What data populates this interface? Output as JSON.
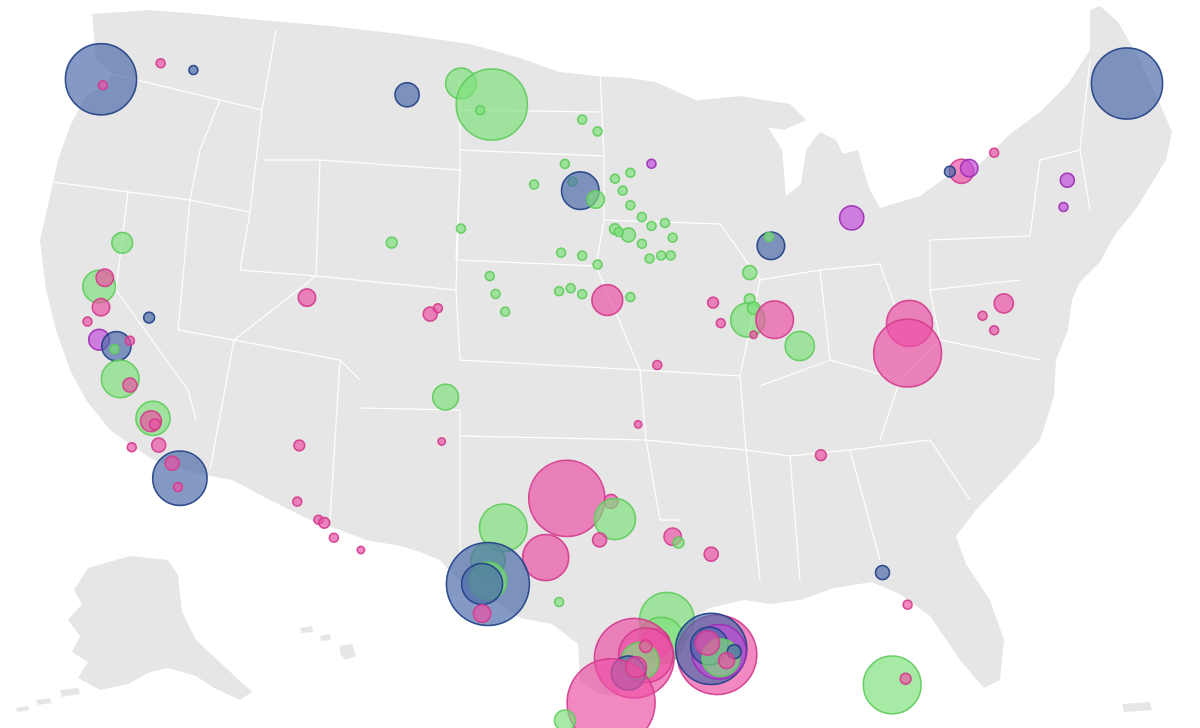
{
  "colors": {
    "land": "#e6e6e6",
    "border": "#ffffff",
    "background": "#ffffff"
  },
  "categories": {
    "green": {
      "fill": "#7ee07a",
      "stroke": "#5fcb5c"
    },
    "pink": {
      "fill": "#ec4fa5",
      "stroke": "#d33b8d"
    },
    "blue": {
      "fill": "#4a6aa8",
      "stroke": "#203f85"
    },
    "purple": {
      "fill": "#c04bd8",
      "stroke": "#9b2db3"
    }
  },
  "markers": [
    {
      "lon": -122.3,
      "lat": 47.6,
      "size": 4.0,
      "cat": "blue"
    },
    {
      "lon": -122.2,
      "lat": 47.4,
      "size": 0.3,
      "cat": "pink"
    },
    {
      "lon": -119.2,
      "lat": 48.2,
      "size": 0.3,
      "cat": "pink"
    },
    {
      "lon": -117.5,
      "lat": 48.0,
      "size": 0.3,
      "cat": "blue"
    },
    {
      "lon": -106.4,
      "lat": 47.3,
      "size": 1.2,
      "cat": "blue"
    },
    {
      "lon": -103.6,
      "lat": 47.7,
      "size": 1.6,
      "cat": "green"
    },
    {
      "lon": -102.0,
      "lat": 47.0,
      "size": 4.0,
      "cat": "green"
    },
    {
      "lon": -102.6,
      "lat": 46.8,
      "size": 0.3,
      "cat": "green"
    },
    {
      "lon": -97.3,
      "lat": 46.5,
      "size": 0.3,
      "cat": "green"
    },
    {
      "lon": -96.5,
      "lat": 46.1,
      "size": 0.3,
      "cat": "green"
    },
    {
      "lon": -98.2,
      "lat": 45.0,
      "size": 0.3,
      "cat": "green"
    },
    {
      "lon": -97.8,
      "lat": 44.4,
      "size": 0.3,
      "cat": "green"
    },
    {
      "lon": -97.4,
      "lat": 44.1,
      "size": 2.0,
      "cat": "blue"
    },
    {
      "lon": -96.6,
      "lat": 43.8,
      "size": 0.8,
      "cat": "green"
    },
    {
      "lon": -99.8,
      "lat": 44.3,
      "size": 0.3,
      "cat": "green"
    },
    {
      "lon": -95.6,
      "lat": 44.5,
      "size": 0.3,
      "cat": "green"
    },
    {
      "lon": -95.2,
      "lat": 44.1,
      "size": 0.3,
      "cat": "green"
    },
    {
      "lon": -94.8,
      "lat": 44.7,
      "size": 0.3,
      "cat": "green"
    },
    {
      "lon": -94.8,
      "lat": 43.6,
      "size": 0.3,
      "cat": "green"
    },
    {
      "lon": -94.2,
      "lat": 43.2,
      "size": 0.3,
      "cat": "green"
    },
    {
      "lon": -93.7,
      "lat": 45.0,
      "size": 0.3,
      "cat": "purple"
    },
    {
      "lon": -95.6,
      "lat": 42.8,
      "size": 0.4,
      "cat": "green"
    },
    {
      "lon": -94.9,
      "lat": 42.6,
      "size": 0.6,
      "cat": "green"
    },
    {
      "lon": -95.4,
      "lat": 42.7,
      "size": 0.3,
      "cat": "green"
    },
    {
      "lon": -93.7,
      "lat": 42.9,
      "size": 0.3,
      "cat": "green"
    },
    {
      "lon": -93.0,
      "lat": 43.0,
      "size": 0.3,
      "cat": "green"
    },
    {
      "lon": -92.6,
      "lat": 42.5,
      "size": 0.3,
      "cat": "green"
    },
    {
      "lon": -94.2,
      "lat": 42.3,
      "size": 0.3,
      "cat": "green"
    },
    {
      "lon": -93.8,
      "lat": 41.8,
      "size": 0.3,
      "cat": "green"
    },
    {
      "lon": -93.2,
      "lat": 41.9,
      "size": 0.3,
      "cat": "green"
    },
    {
      "lon": -92.7,
      "lat": 41.9,
      "size": 0.3,
      "cat": "green"
    },
    {
      "lon": -98.4,
      "lat": 42.0,
      "size": 0.3,
      "cat": "green"
    },
    {
      "lon": -97.3,
      "lat": 41.9,
      "size": 0.3,
      "cat": "green"
    },
    {
      "lon": -96.5,
      "lat": 41.6,
      "size": 0.3,
      "cat": "green"
    },
    {
      "lon": -98.5,
      "lat": 40.7,
      "size": 0.3,
      "cat": "green"
    },
    {
      "lon": -97.9,
      "lat": 40.8,
      "size": 0.3,
      "cat": "green"
    },
    {
      "lon": -97.3,
      "lat": 40.6,
      "size": 0.3,
      "cat": "green"
    },
    {
      "lon": -96.0,
      "lat": 40.4,
      "size": 1.6,
      "cat": "pink"
    },
    {
      "lon": -94.8,
      "lat": 40.5,
      "size": 0.3,
      "cat": "green"
    },
    {
      "lon": -102.1,
      "lat": 41.2,
      "size": 0.3,
      "cat": "green"
    },
    {
      "lon": -101.8,
      "lat": 40.6,
      "size": 0.3,
      "cat": "green"
    },
    {
      "lon": -101.3,
      "lat": 40.0,
      "size": 0.3,
      "cat": "green"
    },
    {
      "lon": -107.2,
      "lat": 42.3,
      "size": 0.4,
      "cat": "green"
    },
    {
      "lon": -103.6,
      "lat": 42.8,
      "size": 0.3,
      "cat": "green"
    },
    {
      "lon": -111.6,
      "lat": 40.4,
      "size": 0.8,
      "cat": "pink"
    },
    {
      "lon": -105.2,
      "lat": 39.9,
      "size": 0.6,
      "cat": "pink"
    },
    {
      "lon": -104.8,
      "lat": 40.1,
      "size": 0.3,
      "cat": "pink"
    },
    {
      "lon": -104.4,
      "lat": 37.1,
      "size": 1.3,
      "cat": "green"
    },
    {
      "lon": -121.2,
      "lat": 42.1,
      "size": 1.0,
      "cat": "green"
    },
    {
      "lon": -122.4,
      "lat": 40.6,
      "size": 1.7,
      "cat": "green"
    },
    {
      "lon": -122.1,
      "lat": 40.9,
      "size": 0.8,
      "cat": "pink"
    },
    {
      "lon": -122.3,
      "lat": 39.9,
      "size": 0.8,
      "cat": "pink"
    },
    {
      "lon": -119.8,
      "lat": 39.6,
      "size": 0.4,
      "cat": "blue"
    },
    {
      "lon": -122.4,
      "lat": 38.8,
      "size": 1.0,
      "cat": "purple"
    },
    {
      "lon": -121.5,
      "lat": 38.6,
      "size": 1.5,
      "cat": "blue"
    },
    {
      "lon": -121.6,
      "lat": 38.5,
      "size": 0.3,
      "cat": "green"
    },
    {
      "lon": -120.8,
      "lat": 38.8,
      "size": 0.3,
      "cat": "pink"
    },
    {
      "lon": -123.0,
      "lat": 39.4,
      "size": 0.3,
      "cat": "pink"
    },
    {
      "lon": -121.3,
      "lat": 37.5,
      "size": 2.0,
      "cat": "green"
    },
    {
      "lon": -120.8,
      "lat": 37.3,
      "size": 0.6,
      "cat": "pink"
    },
    {
      "lon": -119.6,
      "lat": 36.2,
      "size": 1.8,
      "cat": "green"
    },
    {
      "lon": -119.7,
      "lat": 36.1,
      "size": 1.0,
      "cat": "pink"
    },
    {
      "lon": -119.5,
      "lat": 36.0,
      "size": 0.4,
      "cat": "pink"
    },
    {
      "lon": -119.3,
      "lat": 35.3,
      "size": 0.6,
      "cat": "pink"
    },
    {
      "lon": -118.2,
      "lat": 34.2,
      "size": 3.0,
      "cat": "blue"
    },
    {
      "lon": -118.6,
      "lat": 34.7,
      "size": 0.6,
      "cat": "pink"
    },
    {
      "lon": -118.3,
      "lat": 33.9,
      "size": 0.3,
      "cat": "pink"
    },
    {
      "lon": -120.7,
      "lat": 35.2,
      "size": 0.3,
      "cat": "pink"
    },
    {
      "lon": -112.0,
      "lat": 35.4,
      "size": 0.4,
      "cat": "pink"
    },
    {
      "lon": -112.1,
      "lat": 33.5,
      "size": 0.3,
      "cat": "pink"
    },
    {
      "lon": -111.0,
      "lat": 32.9,
      "size": 0.3,
      "cat": "pink"
    },
    {
      "lon": -110.7,
      "lat": 32.8,
      "size": 0.4,
      "cat": "pink"
    },
    {
      "lon": -110.2,
      "lat": 32.3,
      "size": 0.3,
      "cat": "pink"
    },
    {
      "lon": -108.8,
      "lat": 31.9,
      "size": 0.2,
      "cat": "pink"
    },
    {
      "lon": -104.6,
      "lat": 35.6,
      "size": 0.2,
      "cat": "pink"
    },
    {
      "lon": -94.4,
      "lat": 36.2,
      "size": 0.2,
      "cat": "pink"
    },
    {
      "lon": -101.4,
      "lat": 32.7,
      "size": 2.6,
      "cat": "green"
    },
    {
      "lon": -98.1,
      "lat": 33.7,
      "size": 4.3,
      "cat": "pink"
    },
    {
      "lon": -95.8,
      "lat": 33.6,
      "size": 0.6,
      "cat": "pink"
    },
    {
      "lon": -95.6,
      "lat": 33.0,
      "size": 2.2,
      "cat": "green"
    },
    {
      "lon": -96.4,
      "lat": 32.3,
      "size": 0.6,
      "cat": "pink"
    },
    {
      "lon": -99.2,
      "lat": 31.7,
      "size": 2.5,
      "cat": "pink"
    },
    {
      "lon": -102.2,
      "lat": 31.6,
      "size": 1.8,
      "cat": "green"
    },
    {
      "lon": -102.2,
      "lat": 30.8,
      "size": 4.7,
      "cat": "blue"
    },
    {
      "lon": -102.2,
      "lat": 30.9,
      "size": 2.0,
      "cat": "green"
    },
    {
      "lon": -102.5,
      "lat": 30.8,
      "size": 2.2,
      "cat": "blue"
    },
    {
      "lon": -102.5,
      "lat": 29.8,
      "size": 0.8,
      "cat": "pink"
    },
    {
      "lon": -98.5,
      "lat": 30.2,
      "size": 0.3,
      "cat": "green"
    },
    {
      "lon": -92.6,
      "lat": 32.4,
      "size": 0.8,
      "cat": "pink"
    },
    {
      "lon": -92.3,
      "lat": 32.2,
      "size": 0.4,
      "cat": "green"
    },
    {
      "lon": -90.6,
      "lat": 31.8,
      "size": 0.6,
      "cat": "pink"
    },
    {
      "lon": -92.9,
      "lat": 29.6,
      "size": 3.0,
      "cat": "green"
    },
    {
      "lon": -93.2,
      "lat": 28.9,
      "size": 2.5,
      "cat": "green"
    },
    {
      "lon": -93.5,
      "lat": 28.8,
      "size": 1.5,
      "cat": "pink"
    },
    {
      "lon": -94.6,
      "lat": 28.3,
      "size": 4.5,
      "cat": "pink"
    },
    {
      "lon": -94.0,
      "lat": 28.4,
      "size": 3.0,
      "cat": "pink"
    },
    {
      "lon": -94.3,
      "lat": 28.2,
      "size": 2.0,
      "cat": "green"
    },
    {
      "lon": -94.9,
      "lat": 27.8,
      "size": 1.8,
      "cat": "blue"
    },
    {
      "lon": -95.8,
      "lat": 26.8,
      "size": 5.0,
      "cat": "pink"
    },
    {
      "lon": -94.5,
      "lat": 28.0,
      "size": 1.0,
      "cat": "pink"
    },
    {
      "lon": -94.0,
      "lat": 28.7,
      "size": 0.5,
      "cat": "pink"
    },
    {
      "lon": -90.3,
      "lat": 28.4,
      "size": 4.5,
      "cat": "pink"
    },
    {
      "lon": -90.6,
      "lat": 28.6,
      "size": 4.0,
      "cat": "blue"
    },
    {
      "lon": -90.2,
      "lat": 28.5,
      "size": 3.0,
      "cat": "purple"
    },
    {
      "lon": -90.7,
      "lat": 28.7,
      "size": 2.0,
      "cat": "blue"
    },
    {
      "lon": -90.1,
      "lat": 28.3,
      "size": 2.0,
      "cat": "green"
    },
    {
      "lon": -90.8,
      "lat": 28.8,
      "size": 1.2,
      "cat": "pink"
    },
    {
      "lon": -89.4,
      "lat": 28.5,
      "size": 0.6,
      "cat": "blue"
    },
    {
      "lon": -89.8,
      "lat": 28.2,
      "size": 0.7,
      "cat": "pink"
    },
    {
      "lon": -98.2,
      "lat": 26.2,
      "size": 1.0,
      "cat": "green"
    },
    {
      "lon": -81.2,
      "lat": 27.3,
      "size": 3.2,
      "cat": "green"
    },
    {
      "lon": -80.5,
      "lat": 27.5,
      "size": 0.4,
      "cat": "pink"
    },
    {
      "lon": -81.7,
      "lat": 31.1,
      "size": 0.6,
      "cat": "blue"
    },
    {
      "lon": -80.4,
      "lat": 30.0,
      "size": 0.3,
      "cat": "pink"
    },
    {
      "lon": -84.9,
      "lat": 35.1,
      "size": 0.4,
      "cat": "pink"
    },
    {
      "lon": -93.4,
      "lat": 38.2,
      "size": 0.3,
      "cat": "pink"
    },
    {
      "lon": -90.1,
      "lat": 39.6,
      "size": 0.3,
      "cat": "pink"
    },
    {
      "lon": -90.5,
      "lat": 40.3,
      "size": 0.4,
      "cat": "pink"
    },
    {
      "lon": -88.6,
      "lat": 40.4,
      "size": 0.4,
      "cat": "green"
    },
    {
      "lon": -88.7,
      "lat": 39.7,
      "size": 1.8,
      "cat": "green"
    },
    {
      "lon": -88.4,
      "lat": 40.1,
      "size": 0.5,
      "cat": "green"
    },
    {
      "lon": -87.3,
      "lat": 39.7,
      "size": 2.0,
      "cat": "pink"
    },
    {
      "lon": -86.0,
      "lat": 38.8,
      "size": 1.5,
      "cat": "green"
    },
    {
      "lon": -88.4,
      "lat": 39.2,
      "size": 0.2,
      "cat": "pink"
    },
    {
      "lon": -88.6,
      "lat": 41.3,
      "size": 0.6,
      "cat": "green"
    },
    {
      "lon": -87.5,
      "lat": 42.2,
      "size": 1.4,
      "cat": "blue"
    },
    {
      "lon": -87.6,
      "lat": 42.5,
      "size": 0.3,
      "cat": "green"
    },
    {
      "lon": -83.3,
      "lat": 43.1,
      "size": 1.2,
      "cat": "purple"
    },
    {
      "lon": -80.3,
      "lat": 39.5,
      "size": 2.5,
      "cat": "pink"
    },
    {
      "lon": -80.4,
      "lat": 38.5,
      "size": 3.8,
      "cat": "pink"
    },
    {
      "lon": -77.6,
      "lat": 44.6,
      "size": 1.2,
      "cat": "pink"
    },
    {
      "lon": -78.2,
      "lat": 44.6,
      "size": 0.4,
      "cat": "blue"
    },
    {
      "lon": -77.2,
      "lat": 44.7,
      "size": 0.8,
      "cat": "purple"
    },
    {
      "lon": -75.9,
      "lat": 45.2,
      "size": 0.3,
      "cat": "pink"
    },
    {
      "lon": -72.1,
      "lat": 44.2,
      "size": 0.6,
      "cat": "purple"
    },
    {
      "lon": -72.3,
      "lat": 43.3,
      "size": 0.3,
      "cat": "purple"
    },
    {
      "lon": -75.4,
      "lat": 40.1,
      "size": 0.9,
      "cat": "pink"
    },
    {
      "lon": -76.5,
      "lat": 39.7,
      "size": 0.3,
      "cat": "pink"
    },
    {
      "lon": -75.9,
      "lat": 39.2,
      "size": 0.3,
      "cat": "pink"
    },
    {
      "lon": -69.0,
      "lat": 47.4,
      "size": 4.0,
      "cat": "blue"
    }
  ]
}
